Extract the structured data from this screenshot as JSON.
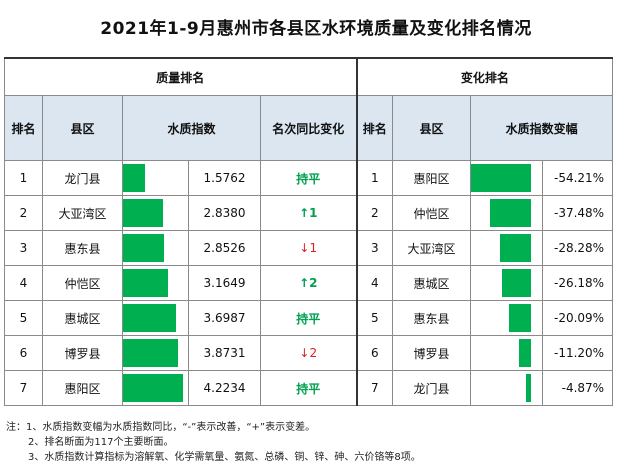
{
  "title": "2021年1-9月惠州市各县区水环境质量及变化排名情况",
  "groups": {
    "quality": "质量排名",
    "change": "变化排名"
  },
  "headers": {
    "rank": "排名",
    "county": "县区",
    "index": "水质指数",
    "yoy": "名次同比变化",
    "rank2": "排名",
    "county2": "县区",
    "change": "水质指数变幅"
  },
  "quality_rows": [
    {
      "rank": "1",
      "county": "龙门县",
      "index": "1.5762",
      "index_value": 1.5762,
      "yoy": "持平",
      "yoy_type": "flat"
    },
    {
      "rank": "2",
      "county": "大亚湾区",
      "index": "2.8380",
      "index_value": 2.838,
      "yoy": "↑1",
      "yoy_type": "up"
    },
    {
      "rank": "3",
      "county": "惠东县",
      "index": "2.8526",
      "index_value": 2.8526,
      "yoy": "↓1",
      "yoy_type": "down"
    },
    {
      "rank": "4",
      "county": "仲恺区",
      "index": "3.1649",
      "index_value": 3.1649,
      "yoy": "↑2",
      "yoy_type": "up"
    },
    {
      "rank": "5",
      "county": "惠城区",
      "index": "3.6987",
      "index_value": 3.6987,
      "yoy": "持平",
      "yoy_type": "flat"
    },
    {
      "rank": "6",
      "county": "博罗县",
      "index": "3.8731",
      "index_value": 3.8731,
      "yoy": "↓2",
      "yoy_type": "down"
    },
    {
      "rank": "7",
      "county": "惠阳区",
      "index": "4.2234",
      "index_value": 4.2234,
      "yoy": "持平",
      "yoy_type": "flat"
    }
  ],
  "change_rows": [
    {
      "rank": "1",
      "county": "惠阳区",
      "change": "-54.21%",
      "change_value": -54.21
    },
    {
      "rank": "2",
      "county": "仲恺区",
      "change": "-37.48%",
      "change_value": -37.48
    },
    {
      "rank": "3",
      "county": "大亚湾区",
      "change": "-28.28%",
      "change_value": -28.28
    },
    {
      "rank": "4",
      "county": "惠城区",
      "change": "-26.18%",
      "change_value": -26.18
    },
    {
      "rank": "5",
      "county": "惠东县",
      "change": "-20.09%",
      "change_value": -20.09
    },
    {
      "rank": "6",
      "county": "博罗县",
      "change": "-11.20%",
      "change_value": -11.2
    },
    {
      "rank": "7",
      "county": "龙门县",
      "change": "-4.87%",
      "change_value": -4.87
    }
  ],
  "notes": [
    "注：1、水质指数变幅为水质指数同比，“-”表示改善，“+”表示变差。",
    "2、排名断面为117个主要断面。",
    "3、水质指数计算指标为溶解氧、化学需氧量、氨氮、总磷、铜、锌、砷、六价铬等8项。"
  ],
  "colors": {
    "bar": "#00b050",
    "header_bg": "#dce6f1",
    "up": "#00a050",
    "down": "#e02020"
  }
}
